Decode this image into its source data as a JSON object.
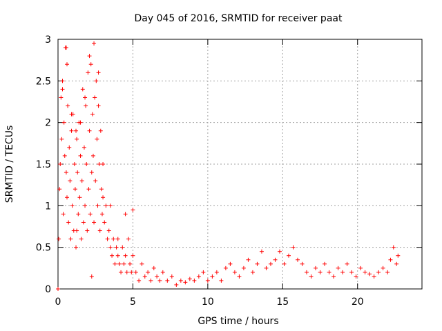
{
  "chart_data": {
    "type": "scatter",
    "title": "Day 045 of 2016, SRMTID for receiver paat",
    "xlabel": "GPS time / hours",
    "ylabel": "SRMTID / TECUs",
    "xlim": [
      0,
      24.3
    ],
    "ylim": [
      0,
      3
    ],
    "xticks": [
      0,
      5,
      10,
      15,
      20
    ],
    "yticks": [
      0,
      0.5,
      1,
      1.5,
      2,
      2.5,
      3
    ],
    "grid": true,
    "marker": "+",
    "series": [
      {
        "name": "SRMTID",
        "color": "#ff0000",
        "x": [
          0.05,
          0.1,
          0.15,
          0.2,
          0.25,
          0.3,
          0.35,
          0.4,
          0.45,
          0.5,
          0.55,
          0.6,
          0.65,
          0.7,
          0.75,
          0.8,
          0.85,
          0.9,
          0.95,
          1.0,
          1.05,
          1.1,
          1.15,
          1.2,
          1.25,
          1.3,
          1.35,
          1.4,
          1.45,
          1.5,
          1.55,
          1.6,
          1.65,
          1.7,
          1.75,
          1.8,
          1.85,
          1.9,
          1.95,
          2.0,
          2.05,
          2.1,
          2.15,
          2.2,
          2.25,
          2.3,
          2.35,
          2.4,
          2.45,
          2.5,
          2.55,
          2.6,
          2.65,
          2.7,
          2.75,
          2.8,
          2.85,
          2.9,
          2.95,
          3.0,
          3.1,
          3.2,
          3.3,
          3.4,
          3.5,
          3.6,
          3.7,
          3.8,
          3.9,
          4.0,
          4.1,
          4.2,
          4.3,
          4.4,
          4.5,
          4.6,
          4.7,
          4.8,
          4.9,
          5.0,
          5.2,
          5.4,
          5.6,
          5.8,
          6.0,
          6.2,
          6.4,
          6.6,
          6.8,
          7.0,
          7.3,
          7.6,
          7.9,
          8.2,
          8.5,
          8.8,
          9.1,
          9.4,
          9.7,
          10.0,
          10.3,
          10.6,
          10.9,
          11.2,
          11.5,
          11.8,
          12.1,
          12.4,
          12.7,
          13.0,
          13.3,
          13.6,
          13.9,
          14.2,
          14.5,
          14.8,
          15.1,
          15.4,
          15.7,
          16.0,
          16.3,
          16.6,
          16.9,
          17.2,
          17.5,
          17.8,
          18.1,
          18.4,
          18.7,
          19.0,
          19.3,
          19.6,
          19.9,
          20.2,
          20.5,
          20.8,
          21.1,
          21.4,
          21.7,
          22.0,
          22.2,
          22.4,
          22.6,
          22.7,
          0.3,
          0.6,
          0.9,
          1.2,
          1.5,
          1.8,
          2.1,
          2.4,
          2.7,
          3.0,
          3.5,
          4.0,
          4.5,
          5.0,
          0.55,
          2.25,
          1.25,
          0.0
        ],
        "y": [
          0.6,
          1.2,
          1.5,
          2.3,
          1.8,
          2.5,
          0.9,
          2.0,
          1.6,
          2.9,
          1.4,
          1.1,
          2.2,
          0.8,
          1.7,
          1.3,
          0.6,
          1.9,
          1.0,
          2.1,
          0.7,
          1.5,
          1.2,
          0.5,
          1.8,
          1.4,
          0.9,
          2.0,
          1.1,
          1.6,
          0.6,
          1.3,
          2.4,
          0.8,
          1.7,
          1.0,
          2.2,
          1.5,
          0.7,
          2.6,
          1.2,
          1.9,
          0.9,
          2.7,
          1.4,
          2.1,
          1.6,
          0.8,
          2.3,
          1.3,
          2.5,
          1.8,
          1.0,
          2.2,
          1.5,
          0.7,
          1.9,
          1.2,
          0.9,
          1.1,
          0.8,
          1.0,
          0.6,
          0.7,
          0.5,
          0.4,
          0.6,
          0.3,
          0.5,
          0.4,
          0.3,
          0.2,
          0.5,
          0.3,
          0.4,
          0.2,
          0.6,
          0.3,
          0.2,
          0.4,
          0.2,
          0.1,
          0.3,
          0.15,
          0.2,
          0.1,
          0.25,
          0.15,
          0.1,
          0.2,
          0.1,
          0.15,
          0.05,
          0.1,
          0.08,
          0.12,
          0.1,
          0.15,
          0.2,
          0.1,
          0.15,
          0.2,
          0.1,
          0.25,
          0.3,
          0.2,
          0.15,
          0.25,
          0.35,
          0.2,
          0.3,
          0.45,
          0.25,
          0.3,
          0.35,
          0.45,
          0.3,
          0.4,
          0.5,
          0.35,
          0.3,
          0.2,
          0.15,
          0.25,
          0.2,
          0.3,
          0.2,
          0.15,
          0.25,
          0.2,
          0.3,
          0.2,
          0.15,
          0.25,
          0.2,
          0.18,
          0.15,
          0.2,
          0.25,
          0.2,
          0.35,
          0.5,
          0.3,
          0.4,
          2.4,
          2.7,
          2.1,
          1.9,
          2.0,
          2.3,
          2.8,
          2.95,
          2.6,
          1.5,
          1.0,
          0.6,
          0.9,
          0.95,
          2.9,
          0.15,
          0.7,
          0.0
        ]
      }
    ]
  }
}
